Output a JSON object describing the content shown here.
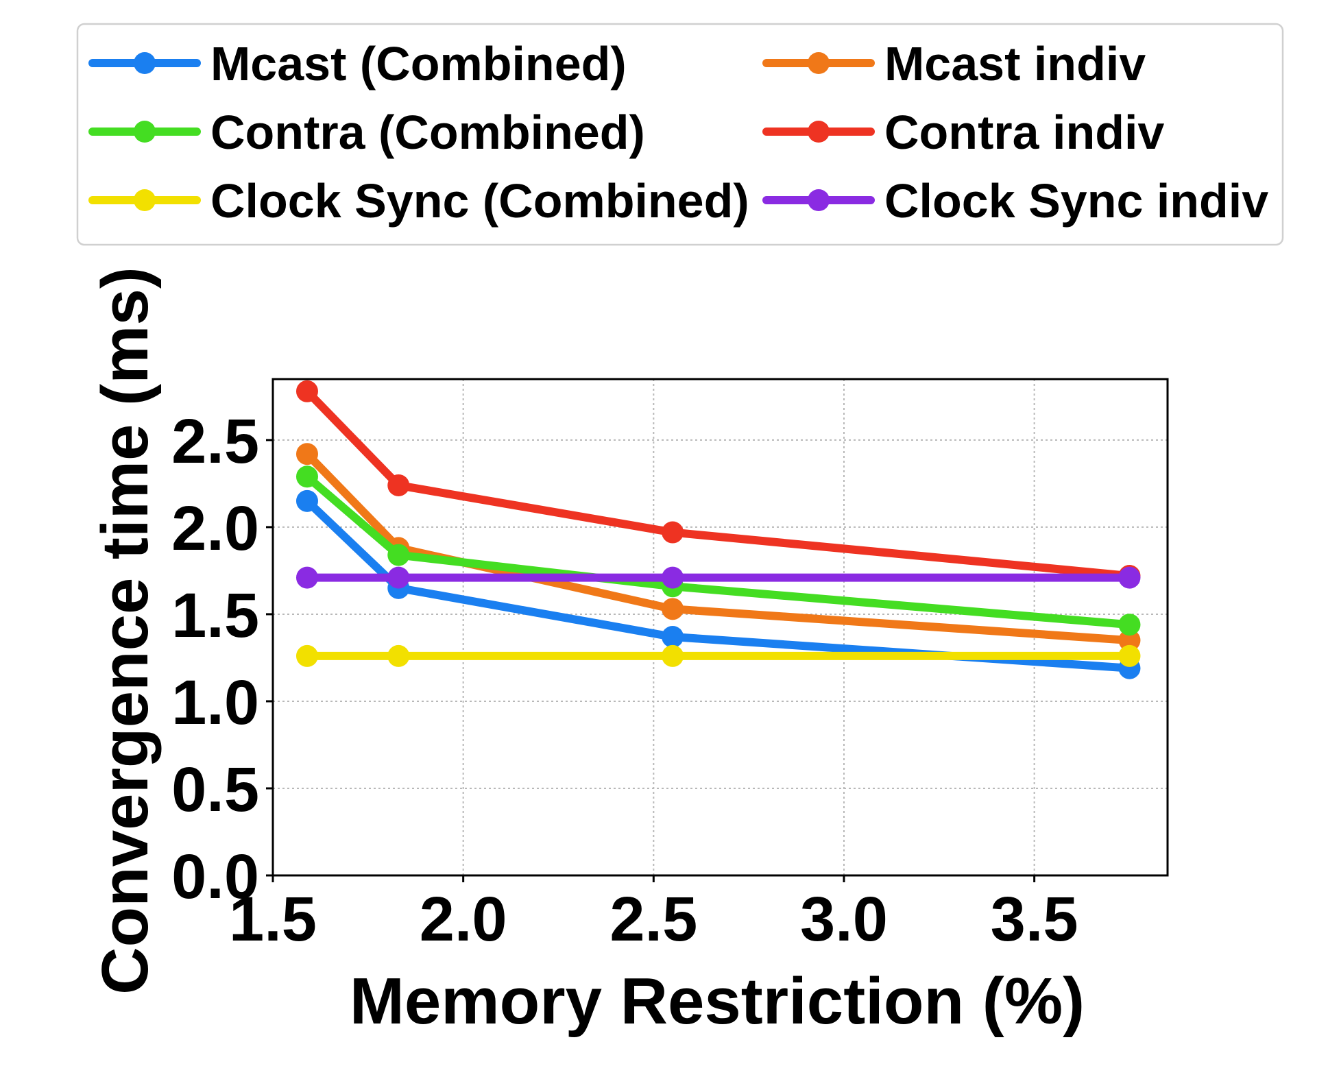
{
  "chart_data": {
    "type": "line",
    "title": "",
    "xlabel": "Memory Restriction (%)",
    "ylabel": "Convergence time (ms)",
    "xlim": [
      1.5,
      3.85
    ],
    "ylim": [
      0.0,
      2.85
    ],
    "xticks": [
      1.5,
      2.0,
      2.5,
      3.0,
      3.5
    ],
    "xtick_labels": [
      "1.5",
      "2.0",
      "2.5",
      "3.0",
      "3.5"
    ],
    "yticks": [
      0.0,
      0.5,
      1.0,
      1.5,
      2.0,
      2.5
    ],
    "ytick_labels": [
      "0.0",
      "0.5",
      "1.0",
      "1.5",
      "2.0",
      "2.5"
    ],
    "grid": true,
    "legend_position": "top",
    "x": [
      1.59,
      1.83,
      2.55,
      3.75
    ],
    "series": [
      {
        "name": "Mcast (Combined)",
        "color": "#1a7ff0",
        "values": [
          2.15,
          1.65,
          1.37,
          1.19
        ]
      },
      {
        "name": "Mcast indiv",
        "color": "#f07818",
        "values": [
          2.42,
          1.88,
          1.53,
          1.35
        ]
      },
      {
        "name": "Contra (Combined)",
        "color": "#44dd22",
        "values": [
          2.29,
          1.84,
          1.66,
          1.44
        ]
      },
      {
        "name": "Contra indiv",
        "color": "#ee3322",
        "values": [
          2.78,
          2.24,
          1.97,
          1.72
        ]
      },
      {
        "name": "Clock Sync (Combined)",
        "color": "#f2e000",
        "values": [
          1.26,
          1.26,
          1.26,
          1.26
        ]
      },
      {
        "name": "Clock Sync indiv",
        "color": "#8a2be2",
        "values": [
          1.71,
          1.71,
          1.71,
          1.71
        ]
      }
    ]
  }
}
